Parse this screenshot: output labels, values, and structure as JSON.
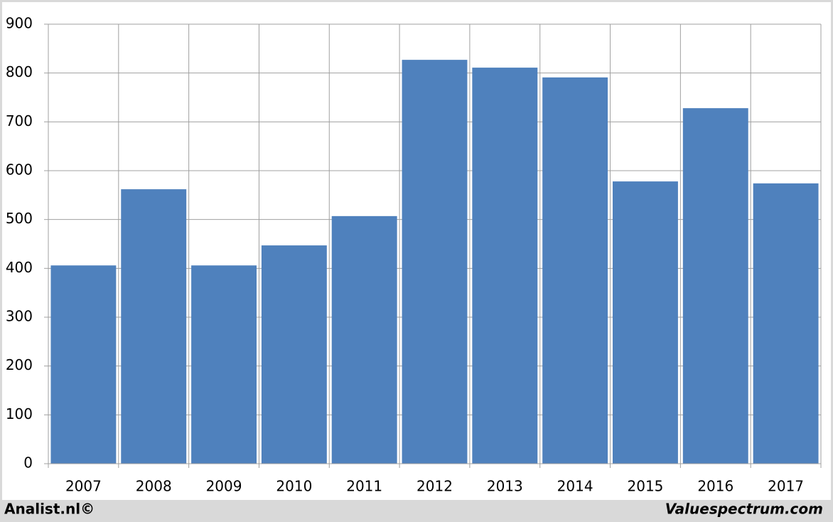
{
  "chart_data": {
    "type": "bar",
    "categories": [
      "2007",
      "2008",
      "2009",
      "2010",
      "2011",
      "2012",
      "2013",
      "2014",
      "2015",
      "2016",
      "2017"
    ],
    "values": [
      406,
      562,
      406,
      447,
      507,
      827,
      811,
      791,
      578,
      728,
      574
    ],
    "color": "#4f81bd",
    "ylim": [
      0,
      900
    ],
    "yticks": [
      0,
      100,
      200,
      300,
      400,
      500,
      600,
      700,
      800,
      900
    ],
    "grid": true,
    "credits": [
      "Analist.nl©",
      "Valuespectrum.com"
    ]
  }
}
